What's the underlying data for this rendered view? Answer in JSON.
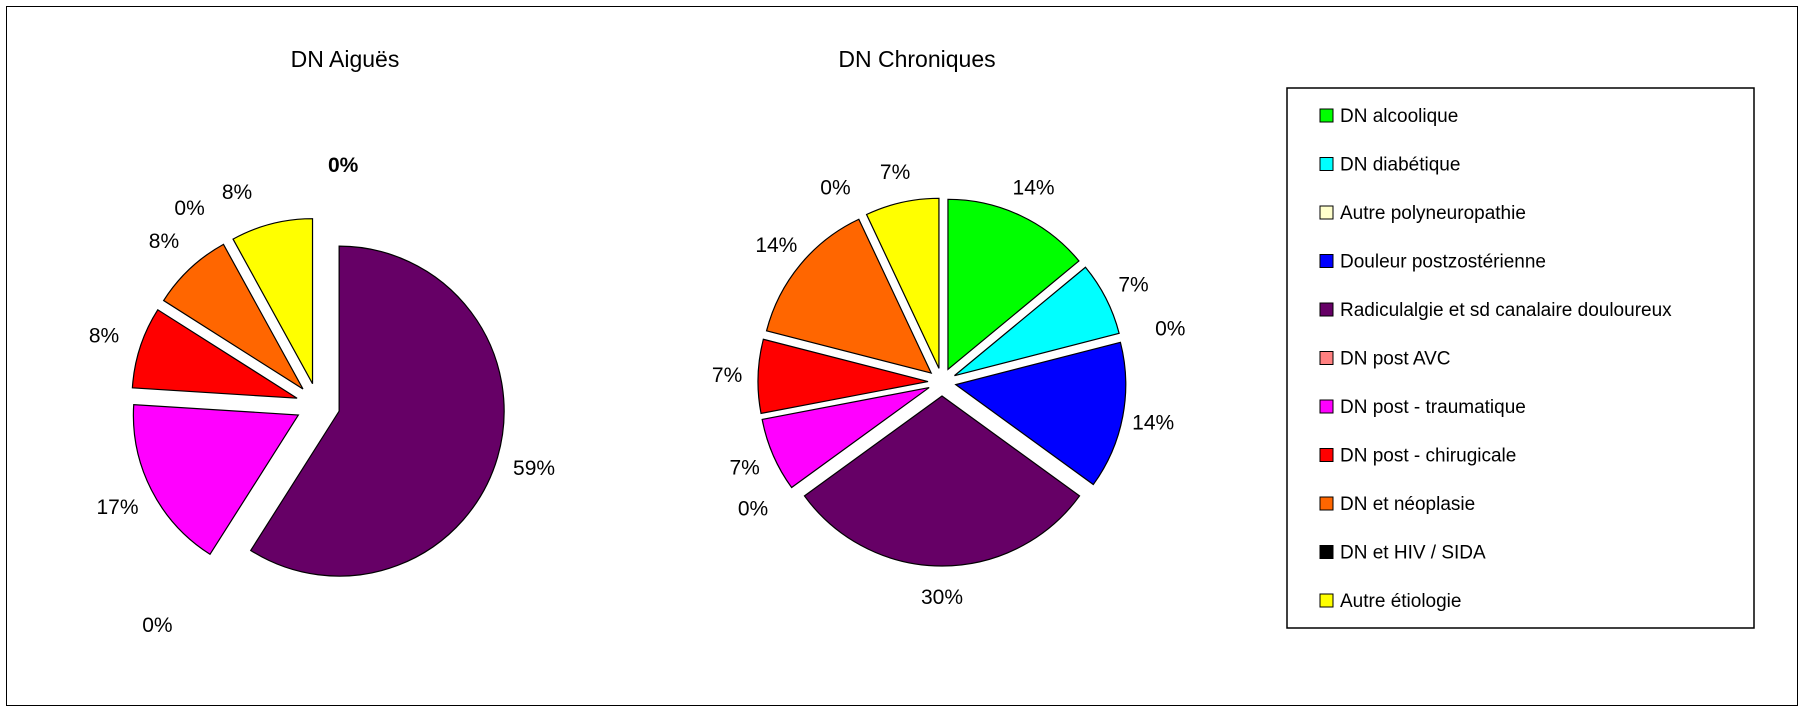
{
  "chart_data": [
    {
      "type": "pie",
      "title": "DN Aiguës",
      "exploded": true,
      "categories": [
        "DN alcoolique",
        "DN diabétique",
        "Autre polyneuropathie",
        "Douleur postzostérienne",
        "Radiculalgie et sd canalaire douloureux",
        "DN post AVC",
        "DN post - traumatique",
        "DN post - chirugicale",
        "DN et néoplasie",
        "DN et HIV / SIDA",
        "Autre étiologie"
      ],
      "values": [
        0,
        0,
        0,
        0,
        59,
        0,
        17,
        8,
        8,
        0,
        8
      ],
      "labels": [
        "",
        "",
        "",
        "",
        "59%",
        "0%",
        "17%",
        "8%",
        "8%",
        "0%",
        "8%"
      ],
      "extra_label": "0%"
    },
    {
      "type": "pie",
      "title": "DN Chroniques",
      "exploded": true,
      "categories": [
        "DN alcoolique",
        "DN diabétique",
        "Autre polyneuropathie",
        "Douleur postzostérienne",
        "Radiculalgie et sd canalaire douloureux",
        "DN post AVC",
        "DN post - traumatique",
        "DN post - chirugicale",
        "DN et néoplasie",
        "DN et HIV / SIDA",
        "Autre étiologie"
      ],
      "values": [
        14,
        7,
        0,
        14,
        30,
        0,
        7,
        7,
        14,
        0,
        7
      ],
      "labels": [
        "14%",
        "7%",
        "0%",
        "14%",
        "30%",
        "0%",
        "7%",
        "7%",
        "14%",
        "0%",
        "7%"
      ]
    }
  ],
  "legend": {
    "position": "right",
    "items": [
      {
        "label": "DN alcoolique",
        "color": "#00ff00"
      },
      {
        "label": "DN diabétique",
        "color": "#00ffff"
      },
      {
        "label": "Autre polyneuropathie",
        "color": "#ffffcc"
      },
      {
        "label": "Douleur postzostérienne",
        "color": "#0000ff"
      },
      {
        "label": "Radiculalgie et sd canalaire douloureux",
        "color": "#660066"
      },
      {
        "label": "DN post AVC",
        "color": "#ff8080"
      },
      {
        "label": "DN post - traumatique",
        "color": "#ff00ff"
      },
      {
        "label": "DN post - chirugicale",
        "color": "#ff0000"
      },
      {
        "label": "DN et néoplasie",
        "color": "#ff6600"
      },
      {
        "label": "DN et HIV / SIDA",
        "color": "#000000"
      },
      {
        "label": "Autre étiologie",
        "color": "#ffff00"
      }
    ]
  }
}
